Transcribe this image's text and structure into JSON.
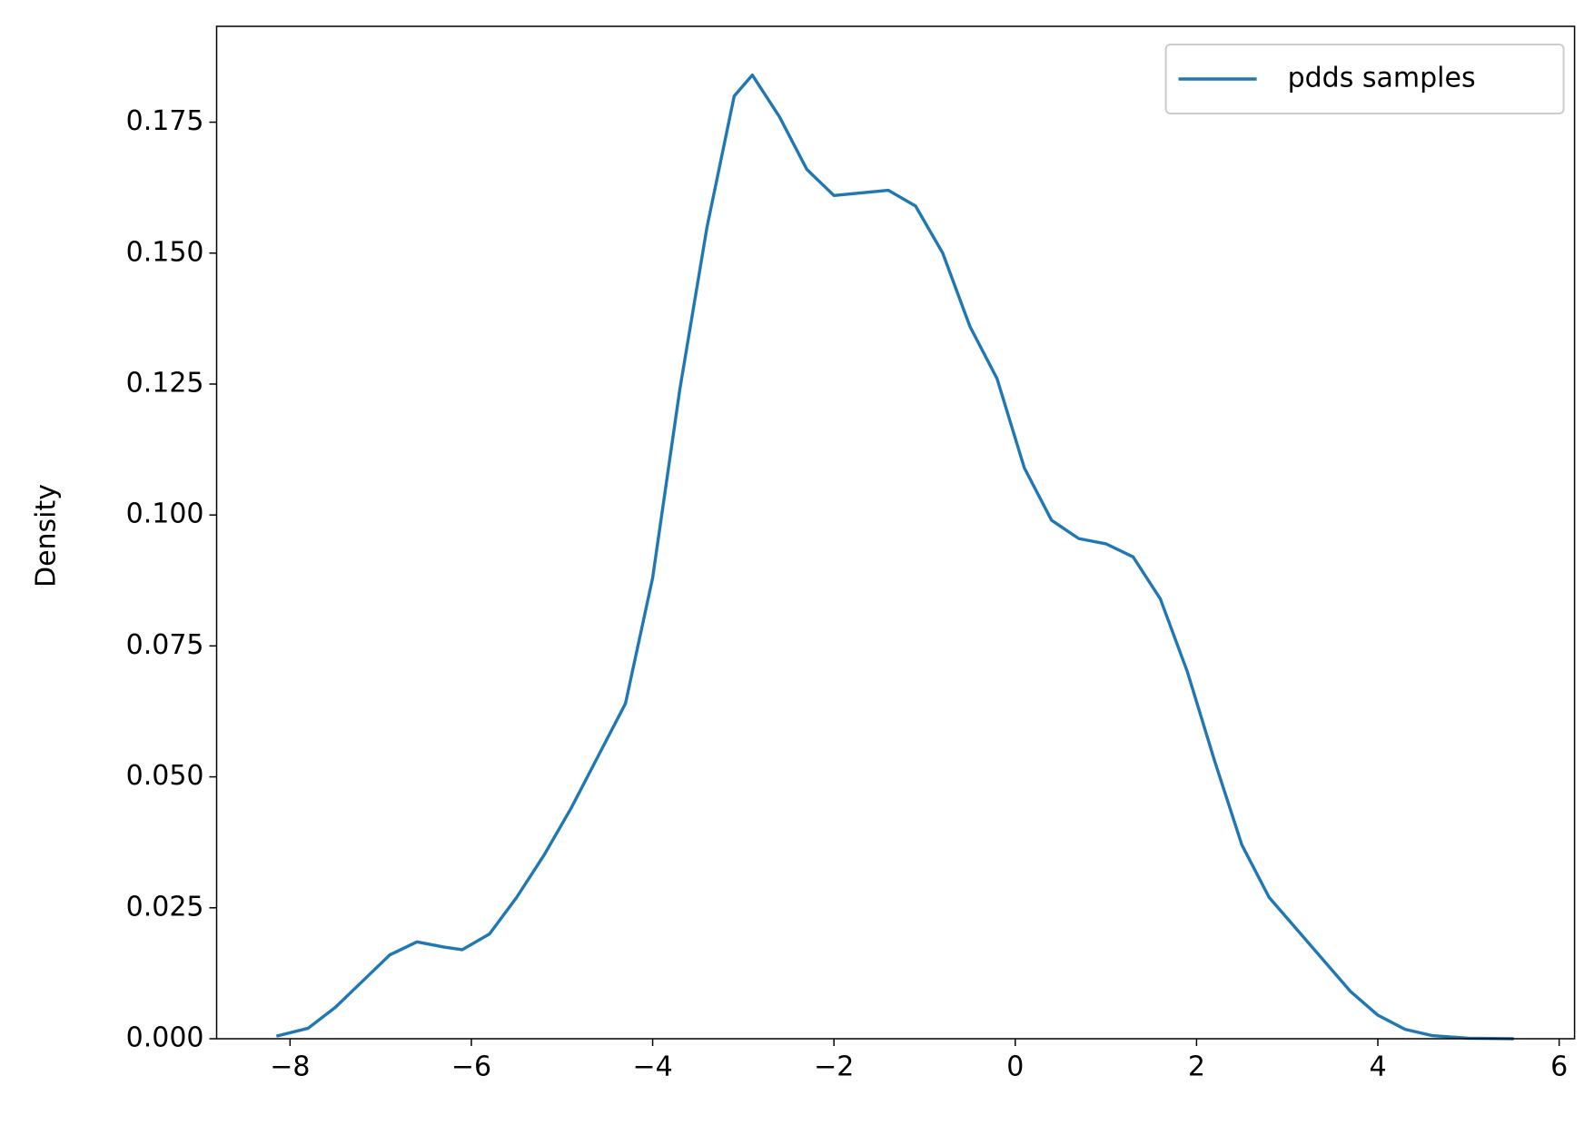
{
  "chart_data": {
    "type": "line",
    "y_label": "Density",
    "x": [
      -8.15,
      -7.8,
      -7.5,
      -7.2,
      -6.9,
      -6.6,
      -6.3,
      -6.1,
      -5.8,
      -5.5,
      -5.2,
      -4.9,
      -4.6,
      -4.3,
      -4.0,
      -3.7,
      -3.4,
      -3.1,
      -2.9,
      -2.6,
      -2.3,
      -2.0,
      -1.7,
      -1.4,
      -1.1,
      -0.8,
      -0.5,
      -0.2,
      0.1,
      0.4,
      0.7,
      1.0,
      1.3,
      1.6,
      1.9,
      2.2,
      2.5,
      2.8,
      3.1,
      3.4,
      3.7,
      4.0,
      4.3,
      4.6,
      5.0,
      5.5
    ],
    "series": [
      {
        "name": "pdds samples",
        "color": "#1f77b4",
        "values": [
          0.0005,
          0.002,
          0.006,
          0.011,
          0.016,
          0.0185,
          0.0175,
          0.017,
          0.02,
          0.027,
          0.035,
          0.044,
          0.054,
          0.064,
          0.088,
          0.124,
          0.155,
          0.18,
          0.184,
          0.176,
          0.166,
          0.161,
          0.1615,
          0.162,
          0.159,
          0.15,
          0.136,
          0.126,
          0.109,
          0.099,
          0.0955,
          0.0945,
          0.092,
          0.084,
          0.07,
          0.053,
          0.037,
          0.027,
          0.021,
          0.015,
          0.009,
          0.0045,
          0.0018,
          0.0006,
          0.0001,
          0.0
        ]
      }
    ],
    "xlim": [
      -8.81,
      6.17
    ],
    "ylim": [
      0,
      0.1933
    ],
    "xticks": [
      {
        "value": -8,
        "label": "−8"
      },
      {
        "value": -6,
        "label": "−6"
      },
      {
        "value": -4,
        "label": "−4"
      },
      {
        "value": -2,
        "label": "−2"
      },
      0,
      2,
      4,
      6
    ],
    "yticks": [
      {
        "value": 0,
        "label": "0.000"
      },
      {
        "value": 0.025,
        "label": "0.025"
      },
      {
        "value": 0.05,
        "label": "0.050"
      },
      {
        "value": 0.075,
        "label": "0.075"
      },
      {
        "value": 0.1,
        "label": "0.100"
      },
      {
        "value": 0.125,
        "label": "0.125"
      },
      {
        "value": 0.15,
        "label": "0.150"
      },
      {
        "value": 0.175,
        "label": "0.175"
      }
    ],
    "legend": "upper right",
    "grid": false
  }
}
